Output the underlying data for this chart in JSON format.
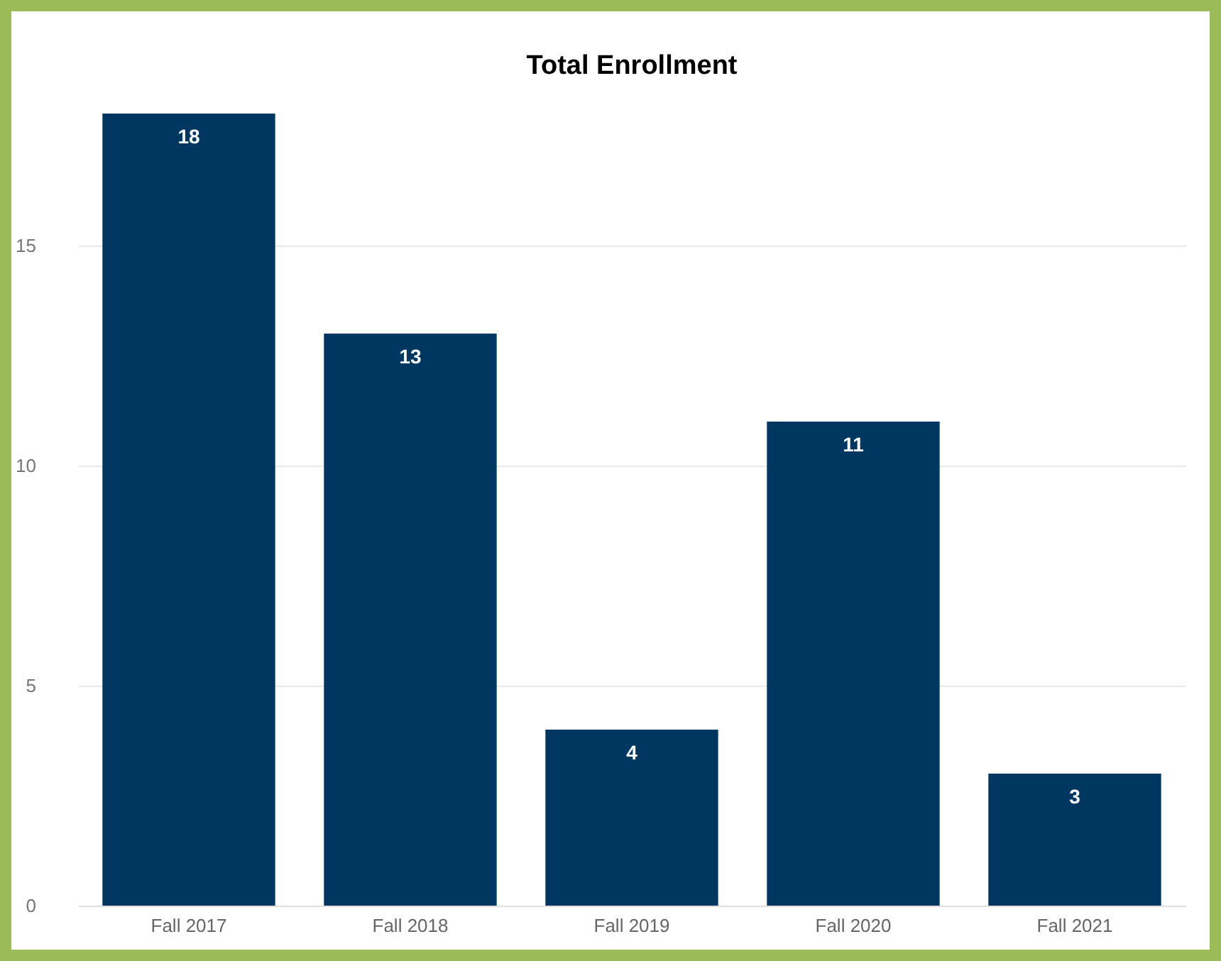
{
  "chart_data": {
    "type": "bar",
    "title": "Total Enrollment",
    "categories": [
      "Fall 2017",
      "Fall 2018",
      "Fall 2019",
      "Fall 2020",
      "Fall 2021"
    ],
    "values": [
      18,
      13,
      4,
      11,
      3
    ],
    "color": "#003761",
    "ylim": [
      0,
      18
    ],
    "yticks": [
      0,
      5,
      10,
      15
    ],
    "grid": "y",
    "data_labels": true
  }
}
